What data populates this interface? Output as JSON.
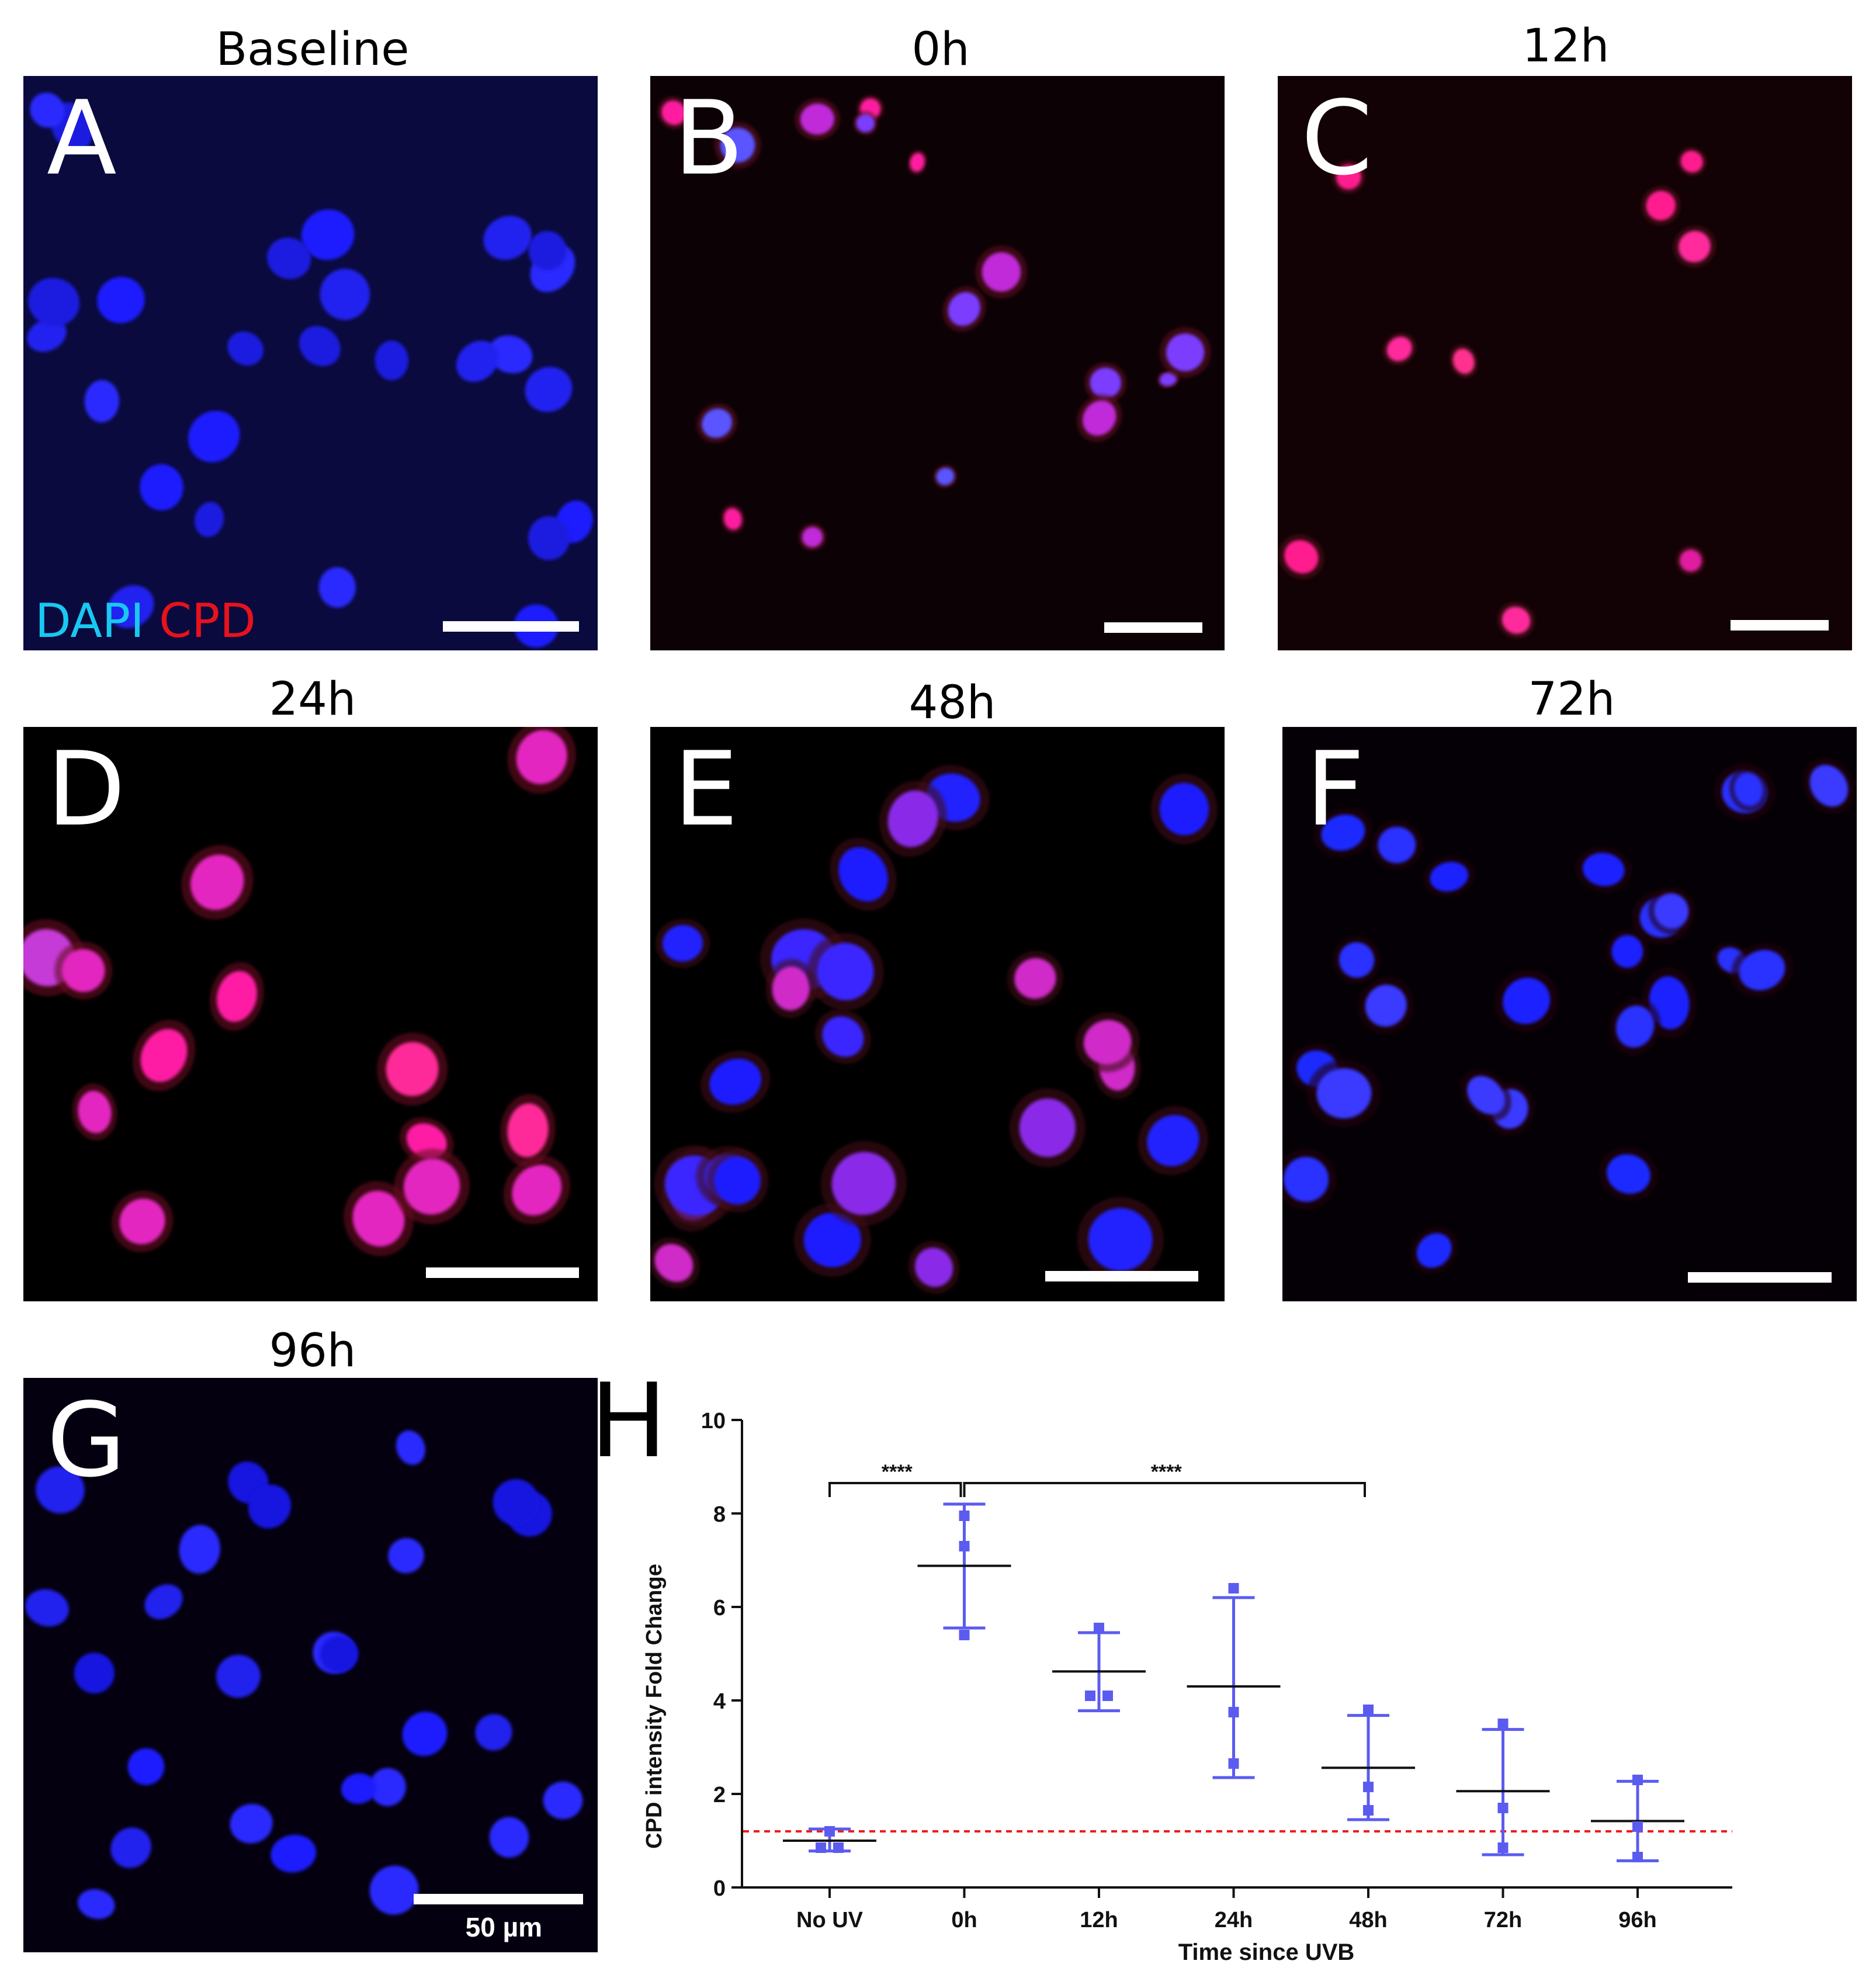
{
  "panels": [
    {
      "id": "A",
      "title": "Baseline",
      "letter": "A",
      "scheme": "baseline"
    },
    {
      "id": "B",
      "title": "0h",
      "letter": "B",
      "scheme": "h0"
    },
    {
      "id": "C",
      "title": "12h",
      "letter": "C",
      "scheme": "h12"
    },
    {
      "id": "D",
      "title": "24h",
      "letter": "D",
      "scheme": "h24"
    },
    {
      "id": "E",
      "title": "48h",
      "letter": "E",
      "scheme": "h48"
    },
    {
      "id": "F",
      "title": "72h",
      "letter": "F",
      "scheme": "h72"
    },
    {
      "id": "G",
      "title": "96h",
      "letter": "G",
      "scheme": "h96"
    }
  ],
  "legend": {
    "dapi": "DAPI",
    "cpd": "CPD",
    "dapi_color": "#19c8f0",
    "cpd_color": "#e8121c"
  },
  "scale_label": "50 µm",
  "panel_h_letter": "H",
  "chart_data": {
    "type": "scatter",
    "panel": "H",
    "xlabel": "Time since UVB",
    "ylabel": "CPD intensity Fold Change",
    "categories": [
      "No UV",
      "0h",
      "12h",
      "24h",
      "48h",
      "72h",
      "96h"
    ],
    "ylim": [
      0,
      10
    ],
    "yticks": [
      0,
      2,
      4,
      6,
      8,
      10
    ],
    "points": [
      [
        1.2,
        0.85,
        0.85
      ],
      [
        7.95,
        7.3,
        5.4
      ],
      [
        5.55,
        4.1,
        4.1
      ],
      [
        6.4,
        3.75,
        2.65
      ],
      [
        3.8,
        2.15,
        1.65
      ],
      [
        3.5,
        1.7,
        0.85
      ],
      [
        2.3,
        1.3,
        0.65
      ]
    ],
    "mean": [
      1.0,
      6.88,
      4.62,
      4.3,
      2.56,
      2.06,
      1.42
    ],
    "sd_low": [
      0.78,
      5.55,
      3.78,
      2.35,
      1.45,
      0.7,
      0.57
    ],
    "sd_high": [
      1.25,
      8.2,
      5.45,
      6.2,
      3.68,
      3.38,
      2.27
    ],
    "reference_line": 1.2,
    "significance": [
      {
        "from": "No UV",
        "to": "0h",
        "label": "****",
        "y": 8.65
      },
      {
        "from": "0h",
        "to": "48h",
        "label": "****",
        "y": 8.65
      }
    ],
    "series_color": "#5b5bf0",
    "mean_color": "#111111",
    "reference_color": "#ee1c1c"
  }
}
